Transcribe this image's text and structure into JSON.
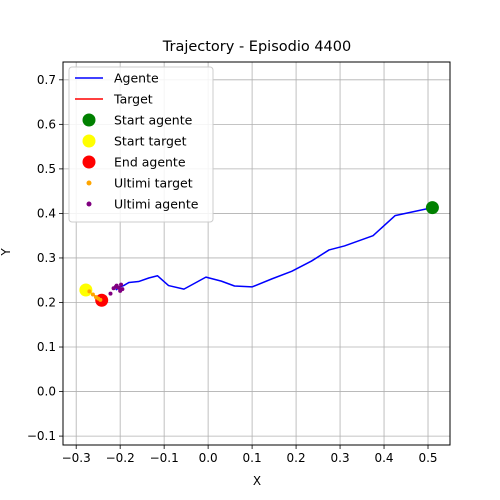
{
  "chart_data": {
    "type": "line",
    "title": "Trajectory - Episodio 4400",
    "xlabel": "X",
    "ylabel": "Y",
    "xlim": [
      -0.33,
      0.55
    ],
    "ylim": [
      -0.12,
      0.74
    ],
    "xticks": [
      -0.3,
      -0.2,
      -0.1,
      0.0,
      0.1,
      0.2,
      0.3,
      0.4,
      0.5
    ],
    "xtick_labels": [
      "−0.3",
      "−0.2",
      "−0.1",
      "0.0",
      "0.1",
      "0.2",
      "0.3",
      "0.4",
      "0.5"
    ],
    "yticks": [
      -0.1,
      0.0,
      0.1,
      0.2,
      0.3,
      0.4,
      0.5,
      0.6,
      0.7
    ],
    "ytick_labels": [
      "−0.1",
      "0.0",
      "0.1",
      "0.2",
      "0.3",
      "0.4",
      "0.5",
      "0.6",
      "0.7"
    ],
    "grid": true,
    "legend_position": "top-left",
    "series": [
      {
        "name": "Agente",
        "kind": "line",
        "color": "#0000ff",
        "x": [
          0.51,
          0.425,
          0.375,
          0.31,
          0.275,
          0.235,
          0.19,
          0.145,
          0.1,
          0.06,
          0.03,
          -0.005,
          -0.055,
          -0.09,
          -0.115,
          -0.135,
          -0.158,
          -0.18,
          -0.192,
          -0.2,
          -0.21
        ],
        "y": [
          0.413,
          0.395,
          0.35,
          0.327,
          0.318,
          0.293,
          0.27,
          0.253,
          0.235,
          0.237,
          0.248,
          0.257,
          0.23,
          0.238,
          0.26,
          0.255,
          0.247,
          0.245,
          0.238,
          0.235,
          0.228
        ]
      },
      {
        "name": "Target",
        "kind": "line",
        "color": "#ff0000",
        "x": [
          -0.275,
          -0.265,
          -0.255,
          -0.248,
          -0.242
        ],
        "y": [
          0.228,
          0.22,
          0.213,
          0.208,
          0.205
        ]
      },
      {
        "name": "Start agente",
        "kind": "marker",
        "color": "#008000",
        "x": [
          0.51
        ],
        "y": [
          0.413
        ]
      },
      {
        "name": "Start target",
        "kind": "marker",
        "color": "#ffff00",
        "x": [
          -0.278
        ],
        "y": [
          0.228
        ]
      },
      {
        "name": "End agente",
        "kind": "marker",
        "color": "#ff0000",
        "x": [
          -0.242
        ],
        "y": [
          0.205
        ]
      },
      {
        "name": "Ultimi target",
        "kind": "scatter",
        "color": "#ffa500",
        "x": [
          -0.27,
          -0.262,
          -0.255,
          -0.25,
          -0.245
        ],
        "y": [
          0.225,
          0.218,
          0.212,
          0.209,
          0.206
        ]
      },
      {
        "name": "Ultimi agente",
        "kind": "scatter",
        "color": "#800080",
        "x": [
          -0.222,
          -0.215,
          -0.208,
          -0.203,
          -0.198,
          -0.195,
          -0.2,
          -0.21
        ],
        "y": [
          0.22,
          0.232,
          0.238,
          0.233,
          0.24,
          0.23,
          0.226,
          0.235
        ]
      }
    ]
  }
}
